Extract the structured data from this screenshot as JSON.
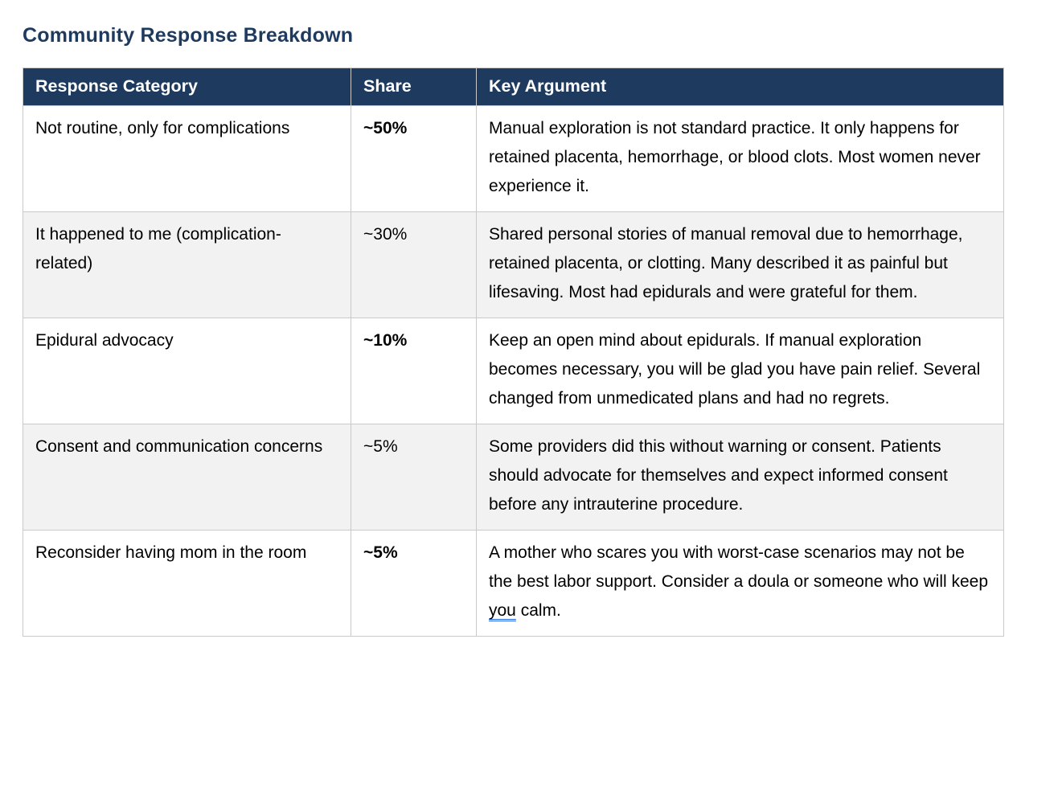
{
  "page": {
    "title": "Community Response Breakdown"
  },
  "colors": {
    "title_text": "#1e3a5f",
    "header_bg": "#1e3a5f",
    "header_text": "#ffffff",
    "row_alt_bg": "#f2f2f2",
    "cell_border": "#c9c9c9",
    "grammar_underline": "#2563eb"
  },
  "table": {
    "headers": [
      "Response Category",
      "Share",
      "Key Argument"
    ],
    "rows": [
      {
        "category": "Not routine, only for complications",
        "share": "~50%",
        "share_bold": true,
        "argument": "Manual exploration is not standard practice. It only happens for retained placenta, hemorrhage, or blood clots. Most women never experience it."
      },
      {
        "category": "It happened to me (complication-related)",
        "share": "~30%",
        "share_bold": false,
        "argument": "Shared personal stories of manual removal due to hemorrhage, retained placenta, or clotting. Many described it as painful but lifesaving. Most had epidurals and were grateful for them."
      },
      {
        "category": "Epidural advocacy",
        "share": "~10%",
        "share_bold": true,
        "argument": "Keep an open mind about epidurals. If manual exploration becomes necessary, you will be glad you have pain relief. Several changed from unmedicated plans and had no regrets."
      },
      {
        "category": "Consent and communication concerns",
        "share": "~5%",
        "share_bold": false,
        "argument": "Some providers did this without warning or consent. Patients should advocate for themselves and expect informed consent before any intrauterine procedure."
      },
      {
        "category": "Reconsider having mom in the room",
        "share": "~5%",
        "share_bold": true,
        "argument_before": "A mother who scares you with worst-case scenarios may not be the best labor support. Consider a doula or someone who will keep ",
        "argument_underlined": "you",
        "argument_after": " calm."
      }
    ]
  }
}
